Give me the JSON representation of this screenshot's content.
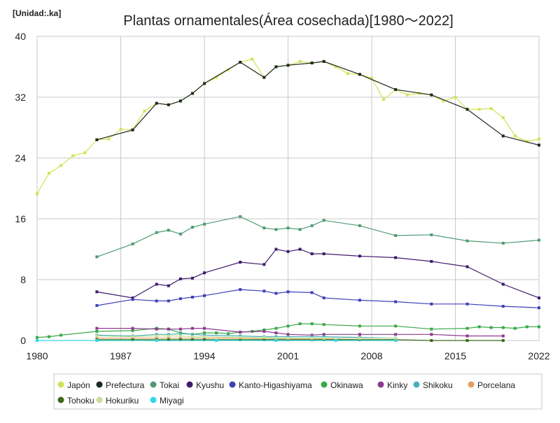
{
  "chart_data": {
    "type": "line",
    "title": "Plantas ornamentales(Área cosechada)[1980～2022]",
    "unit_label": "[Unidad:.ka]",
    "xlabel": "",
    "ylabel": "",
    "xlim": [
      1980,
      2022
    ],
    "ylim": [
      0,
      40
    ],
    "x_ticks": [
      "1980",
      "1987",
      "1994",
      "2001",
      "2008",
      "2015",
      "2022"
    ],
    "y_ticks": [
      "0",
      "8",
      "16",
      "24",
      "32",
      "40"
    ],
    "grid": true,
    "legend_position": "bottom",
    "series": [
      {
        "name": "Japón",
        "color": "#d4e157",
        "points": [
          [
            1980,
            19.3
          ],
          [
            1981,
            22.0
          ],
          [
            1982,
            23.0
          ],
          [
            1983,
            24.3
          ],
          [
            1984,
            24.7
          ],
          [
            1985,
            26.4
          ],
          [
            1986,
            26.5
          ],
          [
            1987,
            27.8
          ],
          [
            1988,
            27.7
          ],
          [
            1989,
            30.2
          ],
          [
            1990,
            31.2
          ],
          [
            1991,
            31.0
          ],
          [
            1992,
            31.5
          ],
          [
            1993,
            32.5
          ],
          [
            1994,
            33.8
          ],
          [
            1995,
            34.6
          ],
          [
            1996,
            35.6
          ],
          [
            1997,
            36.6
          ],
          [
            1998,
            37.0
          ],
          [
            1999,
            34.6
          ],
          [
            2000,
            36.0
          ],
          [
            2001,
            36.2
          ],
          [
            2002,
            36.7
          ],
          [
            2003,
            36.5
          ],
          [
            2004,
            36.7
          ],
          [
            2005,
            36.0
          ],
          [
            2006,
            35.1
          ],
          [
            2007,
            35.0
          ],
          [
            2008,
            34.5
          ],
          [
            2009,
            31.7
          ],
          [
            2010,
            33.0
          ],
          [
            2011,
            32.3
          ],
          [
            2012,
            32.5
          ],
          [
            2013,
            32.3
          ],
          [
            2014,
            31.5
          ],
          [
            2015,
            32.0
          ],
          [
            2016,
            30.4
          ],
          [
            2017,
            30.4
          ],
          [
            2018,
            30.5
          ],
          [
            2019,
            29.3
          ],
          [
            2020,
            26.9
          ],
          [
            2021,
            26.2
          ],
          [
            2022,
            26.5
          ],
          [
            2023,
            25.6
          ]
        ]
      },
      {
        "name": "Prefectura",
        "color": "#1b2a1b",
        "points": [
          [
            1985,
            26.4
          ],
          [
            1988,
            27.7
          ],
          [
            1990,
            31.2
          ],
          [
            1991,
            31.0
          ],
          [
            1992,
            31.5
          ],
          [
            1993,
            32.5
          ],
          [
            1994,
            33.8
          ],
          [
            1997,
            36.6
          ],
          [
            1999,
            34.6
          ],
          [
            2000,
            36.0
          ],
          [
            2001,
            36.2
          ],
          [
            2003,
            36.5
          ],
          [
            2004,
            36.7
          ],
          [
            2007,
            35.0
          ],
          [
            2010,
            33.0
          ],
          [
            2013,
            32.3
          ],
          [
            2016,
            30.4
          ],
          [
            2019,
            26.9
          ],
          [
            2022,
            25.7
          ]
        ]
      },
      {
        "name": "Tokai",
        "color": "#4e9a74",
        "points": [
          [
            1985,
            11.0
          ],
          [
            1988,
            12.7
          ],
          [
            1990,
            14.2
          ],
          [
            1991,
            14.5
          ],
          [
            1992,
            14.0
          ],
          [
            1993,
            14.9
          ],
          [
            1994,
            15.3
          ],
          [
            1997,
            16.3
          ],
          [
            1999,
            14.8
          ],
          [
            2000,
            14.6
          ],
          [
            2001,
            14.8
          ],
          [
            2002,
            14.6
          ],
          [
            2003,
            15.1
          ],
          [
            2004,
            15.8
          ],
          [
            2007,
            15.1
          ],
          [
            2010,
            13.8
          ],
          [
            2013,
            13.9
          ],
          [
            2016,
            13.1
          ],
          [
            2019,
            12.8
          ],
          [
            2022,
            13.2
          ]
        ]
      },
      {
        "name": "Kyushu",
        "color": "#3f1a6e",
        "points": [
          [
            1985,
            6.4
          ],
          [
            1988,
            5.6
          ],
          [
            1990,
            7.4
          ],
          [
            1991,
            7.2
          ],
          [
            1992,
            8.1
          ],
          [
            1993,
            8.2
          ],
          [
            1994,
            8.9
          ],
          [
            1997,
            10.3
          ],
          [
            1999,
            10.0
          ],
          [
            2000,
            12.0
          ],
          [
            2001,
            11.7
          ],
          [
            2002,
            12.0
          ],
          [
            2003,
            11.4
          ],
          [
            2004,
            11.4
          ],
          [
            2007,
            11.1
          ],
          [
            2010,
            10.9
          ],
          [
            2013,
            10.4
          ],
          [
            2016,
            9.7
          ],
          [
            2019,
            7.4
          ],
          [
            2022,
            5.6
          ]
        ]
      },
      {
        "name": "Kanto-Higashiyama",
        "color": "#4040b8",
        "points": [
          [
            1985,
            4.6
          ],
          [
            1988,
            5.4
          ],
          [
            1990,
            5.2
          ],
          [
            1991,
            5.2
          ],
          [
            1992,
            5.5
          ],
          [
            1993,
            5.7
          ],
          [
            1994,
            5.9
          ],
          [
            1997,
            6.7
          ],
          [
            1999,
            6.5
          ],
          [
            2000,
            6.2
          ],
          [
            2001,
            6.4
          ],
          [
            2003,
            6.3
          ],
          [
            2004,
            5.6
          ],
          [
            2007,
            5.3
          ],
          [
            2010,
            5.1
          ],
          [
            2013,
            4.8
          ],
          [
            2016,
            4.8
          ],
          [
            2019,
            4.5
          ],
          [
            2022,
            4.3
          ]
        ]
      },
      {
        "name": "Okinawa",
        "color": "#3aa84a",
        "points": [
          [
            1980,
            0.4
          ],
          [
            1981,
            0.5
          ],
          [
            1982,
            0.7
          ],
          [
            1985,
            1.2
          ],
          [
            1988,
            1.3
          ],
          [
            1990,
            1.6
          ],
          [
            1991,
            1.5
          ],
          [
            1992,
            1.0
          ],
          [
            1993,
            0.8
          ],
          [
            1994,
            1.0
          ],
          [
            1995,
            1.0
          ],
          [
            1996,
            0.9
          ],
          [
            1997,
            1.1
          ],
          [
            1998,
            1.2
          ],
          [
            1999,
            1.4
          ],
          [
            2000,
            1.6
          ],
          [
            2001,
            1.9
          ],
          [
            2002,
            2.2
          ],
          [
            2003,
            2.2
          ],
          [
            2004,
            2.1
          ],
          [
            2007,
            1.9
          ],
          [
            2010,
            1.9
          ],
          [
            2013,
            1.5
          ],
          [
            2016,
            1.6
          ],
          [
            2017,
            1.8
          ],
          [
            2018,
            1.7
          ],
          [
            2019,
            1.7
          ],
          [
            2020,
            1.6
          ],
          [
            2021,
            1.8
          ],
          [
            2022,
            1.8
          ]
        ]
      },
      {
        "name": "Kinky",
        "color": "#8e3a8e",
        "points": [
          [
            1985,
            1.6
          ],
          [
            1988,
            1.6
          ],
          [
            1990,
            1.5
          ],
          [
            1991,
            1.5
          ],
          [
            1992,
            1.5
          ],
          [
            1993,
            1.6
          ],
          [
            1994,
            1.6
          ],
          [
            1997,
            1.1
          ],
          [
            1999,
            1.2
          ],
          [
            2000,
            1.0
          ],
          [
            2001,
            0.8
          ],
          [
            2003,
            0.7
          ],
          [
            2004,
            0.8
          ],
          [
            2007,
            0.8
          ],
          [
            2010,
            0.8
          ],
          [
            2013,
            0.8
          ],
          [
            2016,
            0.6
          ],
          [
            2019,
            0.6
          ]
        ]
      },
      {
        "name": "Shikoku",
        "color": "#4ab0b8",
        "points": [
          [
            1985,
            0.7
          ],
          [
            1988,
            0.6
          ],
          [
            1990,
            0.8
          ],
          [
            1991,
            0.8
          ],
          [
            1992,
            0.9
          ],
          [
            1993,
            0.8
          ],
          [
            1994,
            0.7
          ],
          [
            1997,
            0.6
          ],
          [
            1999,
            0.5
          ],
          [
            2000,
            0.5
          ],
          [
            2001,
            0.5
          ],
          [
            2003,
            0.5
          ],
          [
            2004,
            0.5
          ],
          [
            2007,
            0.4
          ],
          [
            2010,
            0.3
          ]
        ]
      },
      {
        "name": "Porcelana",
        "color": "#e0a060",
        "points": [
          [
            1985,
            0.3
          ],
          [
            1988,
            0.3
          ],
          [
            1990,
            0.3
          ],
          [
            1991,
            0.3
          ],
          [
            1992,
            0.3
          ],
          [
            1993,
            0.3
          ],
          [
            1994,
            0.3
          ],
          [
            1997,
            0.3
          ],
          [
            1999,
            0.2
          ],
          [
            2000,
            0.2
          ],
          [
            2001,
            0.2
          ],
          [
            2003,
            0.2
          ],
          [
            2004,
            0.2
          ],
          [
            2007,
            0.1
          ],
          [
            2010,
            0.1
          ]
        ]
      },
      {
        "name": "Tohoku",
        "color": "#3a6a1a",
        "points": [
          [
            1985,
            0.1
          ],
          [
            1988,
            0.1
          ],
          [
            1990,
            0.1
          ],
          [
            1991,
            0.1
          ],
          [
            1992,
            0.1
          ],
          [
            1993,
            0.1
          ],
          [
            1994,
            0.1
          ],
          [
            1997,
            0.1
          ],
          [
            1999,
            0.1
          ],
          [
            2000,
            0.1
          ],
          [
            2001,
            0.1
          ],
          [
            2003,
            0.1
          ],
          [
            2004,
            0.1
          ],
          [
            2007,
            0.1
          ],
          [
            2010,
            0.1
          ],
          [
            2013,
            0.0
          ],
          [
            2016,
            0.0
          ],
          [
            2019,
            0.0
          ]
        ]
      },
      {
        "name": "Hokuriku",
        "color": "#c8df9a",
        "points": [
          [
            1985,
            0.6
          ],
          [
            1988,
            0.5
          ],
          [
            1990,
            0.6
          ],
          [
            1991,
            0.6
          ],
          [
            1992,
            0.6
          ],
          [
            1993,
            0.5
          ],
          [
            1994,
            0.5
          ],
          [
            1997,
            0.4
          ],
          [
            1999,
            0.4
          ],
          [
            2000,
            0.3
          ],
          [
            2001,
            0.3
          ],
          [
            2003,
            0.3
          ],
          [
            2004,
            0.3
          ],
          [
            2007,
            0.3
          ],
          [
            2010,
            0.3
          ]
        ]
      },
      {
        "name": "Miyagi",
        "color": "#30d8e8",
        "points": [
          [
            1980,
            0.0
          ],
          [
            1985,
            0.0
          ],
          [
            1990,
            0.0
          ],
          [
            1995,
            0.0
          ],
          [
            2000,
            0.0
          ],
          [
            2005,
            0.0
          ],
          [
            2010,
            0.0
          ]
        ]
      }
    ]
  }
}
